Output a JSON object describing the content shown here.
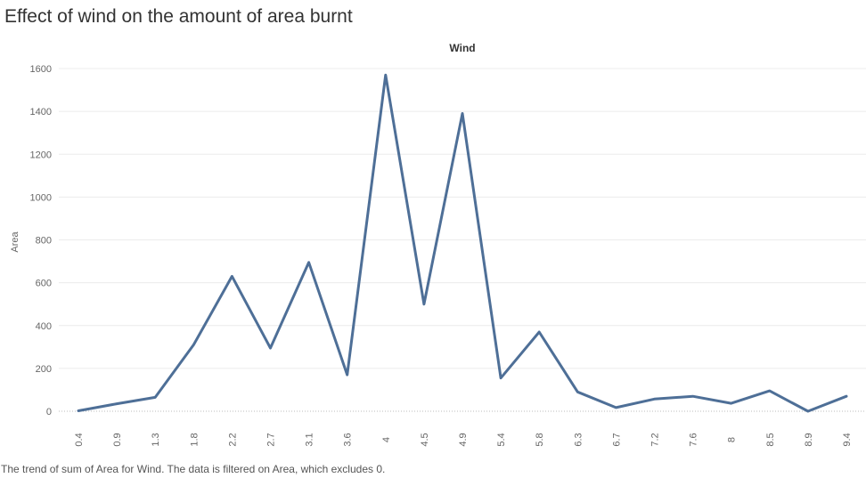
{
  "title": "Effect of wind on the amount of area burnt",
  "caption": "The trend of sum of Area for Wind.  The data is filtered on Area, which excludes 0.",
  "chart_data": {
    "type": "line",
    "title": "Effect of wind on the amount of area burnt",
    "column_header": "Wind",
    "xlabel": "",
    "ylabel": "Area",
    "x": [
      "0.4",
      "0.9",
      "1.3",
      "1.8",
      "2.2",
      "2.7",
      "3.1",
      "3.6",
      "4",
      "4.5",
      "4.9",
      "5.4",
      "5.8",
      "6.3",
      "6.7",
      "7.2",
      "7.6",
      "8",
      "8.5",
      "8.9",
      "9.4"
    ],
    "series": [
      {
        "values": [
          2,
          35,
          65,
          310,
          630,
          295,
          695,
          170,
          1570,
          500,
          1390,
          155,
          370,
          90,
          17,
          57,
          70,
          37,
          95,
          0,
          70
        ]
      }
    ],
    "ylim": [
      0,
      1600
    ],
    "yticks": [
      0,
      200,
      400,
      600,
      800,
      1000,
      1200,
      1400,
      1600
    ],
    "grid": true,
    "line_color": "#4e6f97"
  }
}
